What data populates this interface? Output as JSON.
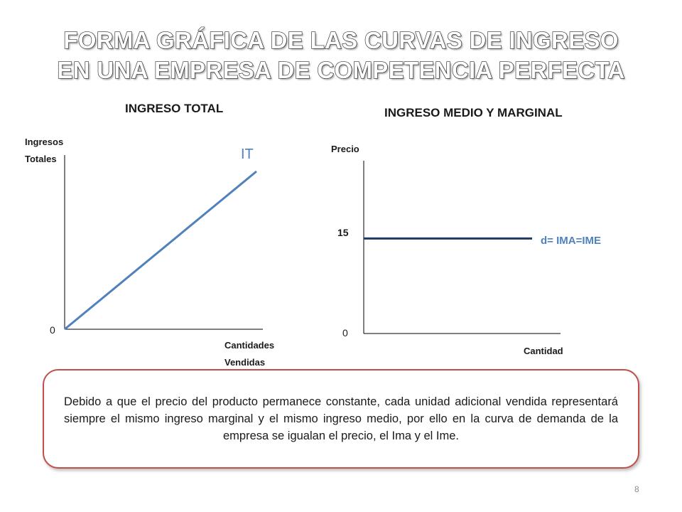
{
  "slide": {
    "title_line1": "FORMA GRÁFICA DE LAS CURVAS DE INGRESO",
    "title_line2": "EN UNA EMPRESA DE COMPETENCIA PERFECTA",
    "page_number": "8"
  },
  "chart_data": [
    {
      "type": "line",
      "title": "INGRESO TOTAL",
      "ylabel_line1": "Ingresos",
      "ylabel_line2": "Totales",
      "xlabel_line1": "Cantidades",
      "xlabel_line2": "Vendidas",
      "origin_label": "0",
      "series": [
        {
          "name": "IT",
          "x": [
            0,
            1
          ],
          "y": [
            0,
            1
          ],
          "color": "#4f81bd"
        }
      ],
      "grid": false
    },
    {
      "type": "line",
      "title": "INGRESO MEDIO Y MARGINAL",
      "ylabel": "Precio",
      "xlabel": "Cantidad",
      "origin_label": "0",
      "price_tick": "15",
      "series": [
        {
          "name": "d= IMA=IME",
          "y": 15,
          "color": "#1f3864",
          "label_color": "#4f81bd"
        }
      ],
      "grid": false
    }
  ],
  "textbox": {
    "text": "Debido a que el precio del producto permanece constante, cada unidad adicional vendida representará siempre el mismo ingreso marginal y el mismo ingreso medio, por ello en la curva de demanda de la empresa se igualan el precio, el Ima y el Ime."
  }
}
